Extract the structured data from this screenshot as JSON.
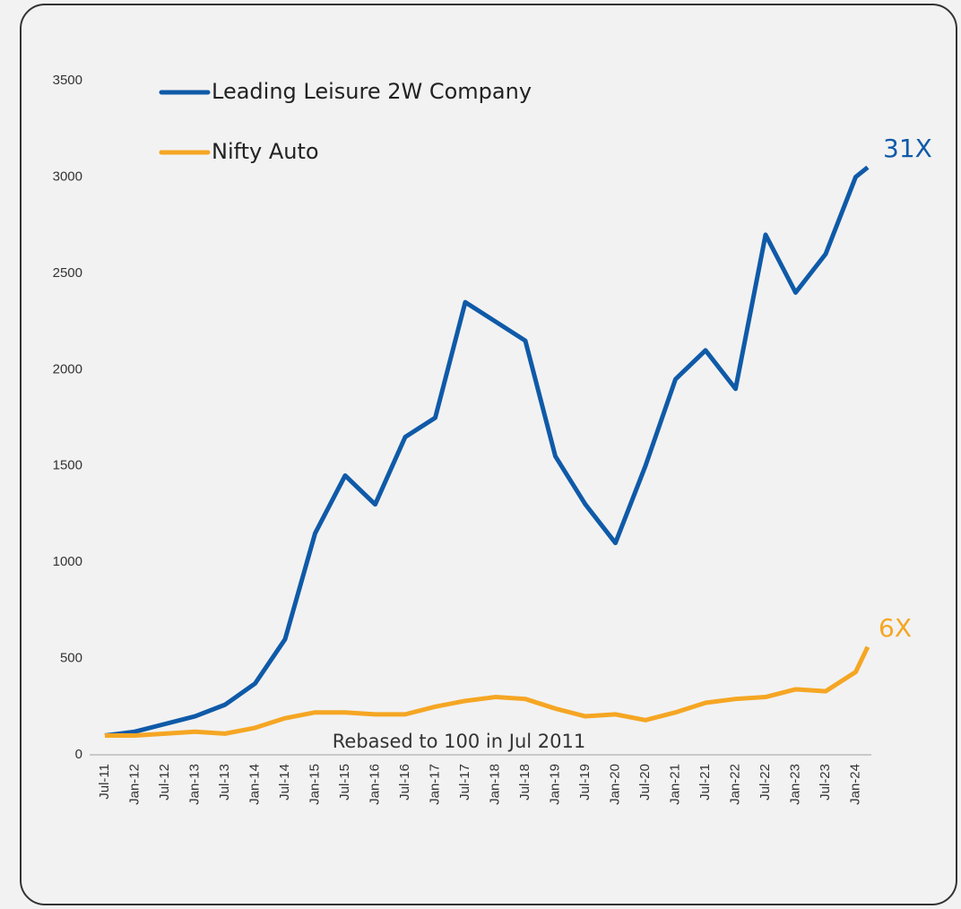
{
  "chart_data": {
    "type": "line",
    "categories": [
      "Jul-11",
      "Jan-12",
      "Jul-12",
      "Jan-13",
      "Jul-13",
      "Jan-14",
      "Jul-14",
      "Jan-15",
      "Jul-15",
      "Jan-16",
      "Jul-16",
      "Jan-17",
      "Jul-17",
      "Jan-18",
      "Jul-18",
      "Jan-19",
      "Jul-19",
      "Jan-20",
      "Jul-20",
      "Jan-21",
      "Jul-21",
      "Jan-22",
      "Jul-22",
      "Jan-23",
      "Jul-23",
      "Jan-24",
      null
    ],
    "series": [
      {
        "name": "Leading Leisure 2W Company",
        "color": "#0f5aa8",
        "values": [
          100,
          120,
          160,
          200,
          260,
          370,
          600,
          1150,
          1450,
          1300,
          1650,
          1750,
          2350,
          2250,
          2150,
          1550,
          1300,
          1100,
          1500,
          1950,
          2100,
          1900,
          2700,
          2400,
          2600,
          3000,
          3050
        ]
      },
      {
        "name": "Nifty Auto",
        "color": "#f5a623",
        "values": [
          100,
          100,
          110,
          120,
          110,
          140,
          190,
          220,
          220,
          210,
          210,
          250,
          280,
          300,
          290,
          240,
          200,
          210,
          180,
          220,
          270,
          290,
          300,
          340,
          330,
          430,
          560
        ]
      }
    ],
    "ylim": [
      0,
      3500
    ],
    "yticks": [
      0,
      500,
      1000,
      1500,
      2000,
      2500,
      3000,
      3500
    ],
    "annotations": [
      "31X",
      "6X",
      "Rebased to 100 in Jul 2011"
    ],
    "grid": false
  }
}
